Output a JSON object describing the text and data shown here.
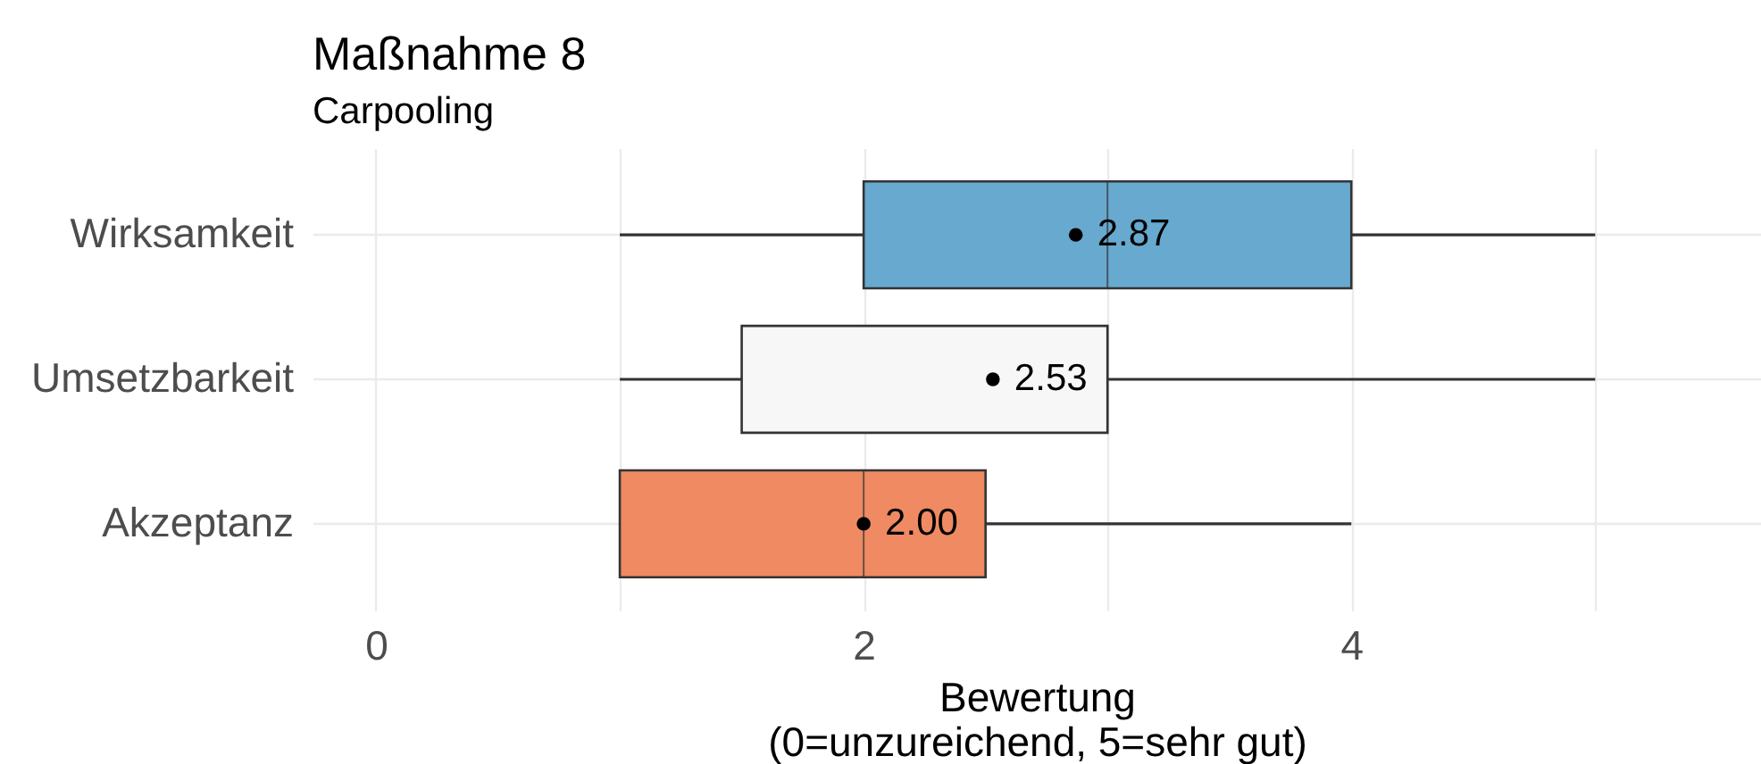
{
  "chart_data": {
    "type": "box",
    "title": "Maßnahme 8",
    "subtitle": "Carpooling",
    "xlabel": "Bewertung\n(0=unzureichend, 5=sehr gut)",
    "orientation": "horizontal",
    "categories": [
      "Wirksamkeit",
      "Umsetzbarkeit",
      "Akzeptanz"
    ],
    "colors": [
      "#67a9cf",
      "#f7f7f7",
      "#ef8a62"
    ],
    "boxes": [
      {
        "low": 1,
        "q1": 2,
        "median": 3,
        "q3": 4,
        "high": 5,
        "mean": 2.87
      },
      {
        "low": 1,
        "q1": 1.5,
        "median": 3,
        "q3": 3,
        "high": 5,
        "mean": 2.53
      },
      {
        "low": 1,
        "q1": 1,
        "median": 2,
        "q3": 2.5,
        "high": 4,
        "mean": 2.0
      }
    ],
    "xlim": [
      -0.26,
      5.68
    ],
    "xticks": [
      0,
      {
        "value": 1,
        "label": null
      },
      2,
      {
        "value": 3,
        "label": null
      },
      4,
      {
        "value": 5,
        "label": null
      }
    ],
    "grid": true,
    "annotations": [
      {
        "text": "2.87",
        "x": 2.87,
        "y": "Wirksamkeit"
      },
      {
        "text": "2.53",
        "x": 2.53,
        "y": "Umsetzbarkeit"
      },
      {
        "text": "2.00",
        "x": 2.0,
        "y": "Akzeptanz"
      }
    ]
  }
}
